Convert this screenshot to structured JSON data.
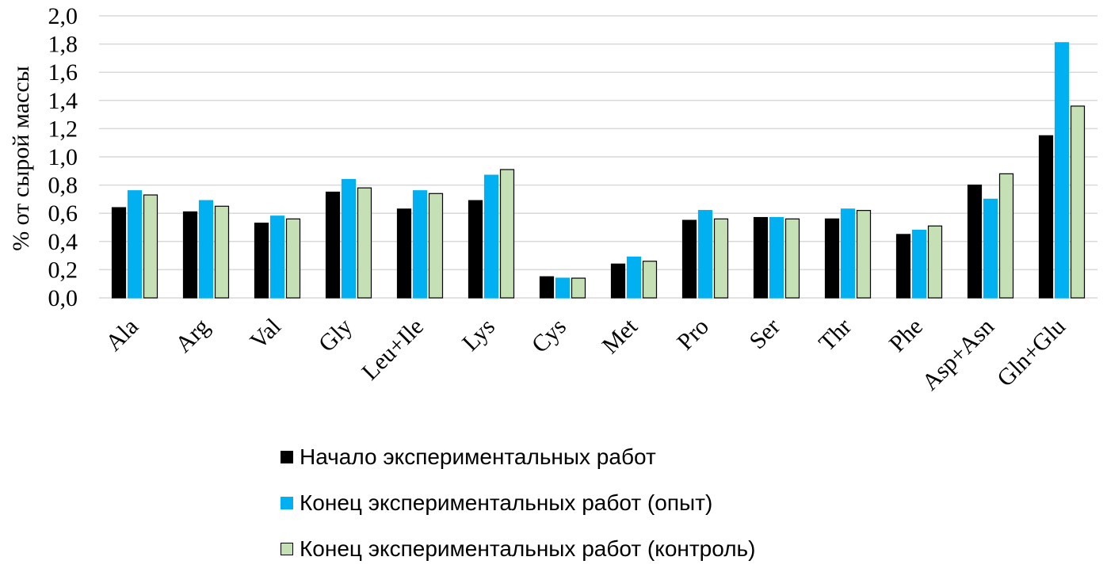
{
  "chart_data": {
    "type": "bar",
    "title": "",
    "xlabel": "",
    "ylabel": "% от сырой массы",
    "ylim": [
      0,
      2.0
    ],
    "yticks": [
      "0,0",
      "0,2",
      "0,4",
      "0,6",
      "0,8",
      "1,0",
      "1,2",
      "1,4",
      "1,6",
      "1,8",
      "2,0"
    ],
    "grid": true,
    "legend_position": "bottom",
    "categories": [
      "Ala",
      "Arg",
      "Val",
      "Gly",
      "Leu+Ile",
      "Lys",
      "Cys",
      "Met",
      "Pro",
      "Ser",
      "Thr",
      "Phe",
      "Asp+Asn",
      "Gln+Glu"
    ],
    "series": [
      {
        "name": "Начало экспериментальных работ",
        "color": "#000000",
        "border": "#000000",
        "values": [
          0.64,
          0.61,
          0.53,
          0.75,
          0.63,
          0.69,
          0.15,
          0.24,
          0.55,
          0.57,
          0.56,
          0.45,
          0.8,
          1.15
        ]
      },
      {
        "name": "Конец экспериментальных работ (опыт)",
        "color": "#00b0f0",
        "border": "#00b0f0",
        "values": [
          0.76,
          0.69,
          0.58,
          0.84,
          0.76,
          0.87,
          0.14,
          0.29,
          0.62,
          0.57,
          0.63,
          0.48,
          0.7,
          1.81
        ]
      },
      {
        "name": "Конец экспериментальных работ (контроль)",
        "color": "#c5e0b4",
        "border": "#000000",
        "values": [
          0.73,
          0.65,
          0.56,
          0.78,
          0.74,
          0.91,
          0.14,
          0.26,
          0.56,
          0.56,
          0.62,
          0.51,
          0.88,
          1.36
        ]
      }
    ]
  }
}
